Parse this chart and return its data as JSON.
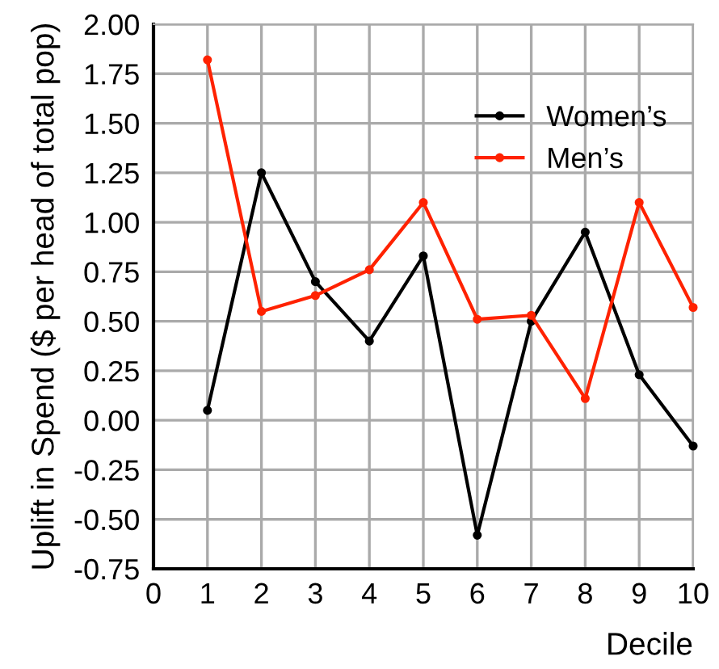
{
  "chart_data": {
    "type": "line",
    "xlabel": "Decile",
    "ylabel": "Uplift in Spend ($ per head of total pop)",
    "x": [
      1,
      2,
      3,
      4,
      5,
      6,
      7,
      8,
      9,
      10
    ],
    "series": [
      {
        "name": "Women’s",
        "color": "#000000",
        "values": [
          0.05,
          1.25,
          0.7,
          0.4,
          0.83,
          -0.58,
          0.5,
          0.95,
          0.23,
          -0.13
        ]
      },
      {
        "name": "Men’s",
        "color": "#ff2200",
        "values": [
          1.82,
          0.55,
          0.63,
          0.76,
          1.1,
          0.51,
          0.53,
          0.11,
          1.1,
          0.57
        ]
      }
    ],
    "xlim": [
      0,
      10
    ],
    "xticks": [
      0,
      1,
      2,
      3,
      4,
      5,
      6,
      7,
      8,
      9,
      10
    ],
    "ylim": [
      -0.75,
      2.0
    ],
    "yticks": [
      {
        "value": -0.75,
        "label": "-0.75"
      },
      {
        "value": -0.5,
        "label": "-0.50"
      },
      {
        "value": -0.25,
        "label": "-0.25"
      },
      {
        "value": 0,
        "label": "0.00"
      },
      {
        "value": 0.25,
        "label": "0.25"
      },
      {
        "value": 0.5,
        "label": "0.50"
      },
      {
        "value": 0.75,
        "label": "0.75"
      },
      {
        "value": 1.0,
        "label": "1.00"
      },
      {
        "value": 1.25,
        "label": "1.25"
      },
      {
        "value": 1.5,
        "label": "1.50"
      },
      {
        "value": 1.75,
        "label": "1.75"
      },
      {
        "value": 2.0,
        "label": "2.00"
      }
    ],
    "grid": true,
    "legend": "top right",
    "marker": "circle",
    "line_style": "solid"
  }
}
